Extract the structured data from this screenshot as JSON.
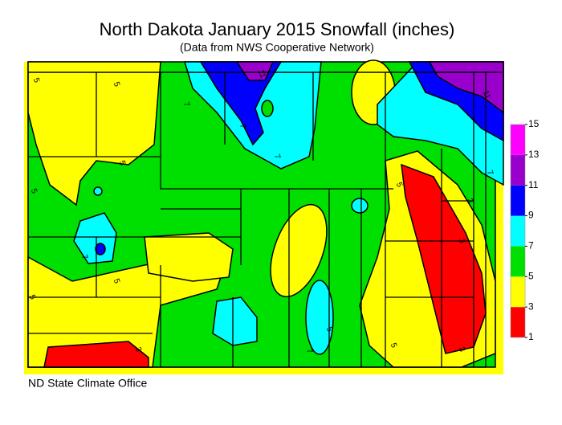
{
  "title": "North Dakota January 2015 Snowfall (inches)",
  "subtitle": "(Data from NWS Cooperative Network)",
  "footer": "ND State Climate Office",
  "legend": {
    "ticks": [
      1,
      3,
      5,
      7,
      9,
      11,
      13,
      15
    ],
    "colors": [
      "#ff0000",
      "#ffff00",
      "#00e000",
      "#00ffff",
      "#0000ff",
      "#9900cc",
      "#ff00ff"
    ]
  },
  "contour_labels": [
    5,
    5,
    7,
    11,
    7,
    7,
    11,
    7,
    5,
    5,
    3,
    5,
    7,
    5,
    3,
    3,
    5,
    7,
    5,
    5,
    3
  ]
}
